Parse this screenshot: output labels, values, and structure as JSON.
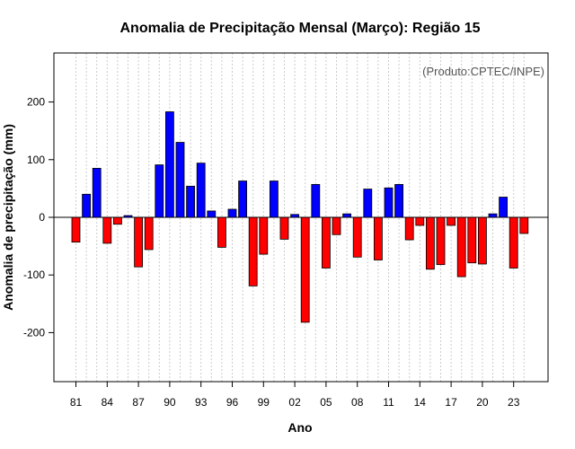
{
  "chart_data": {
    "type": "bar",
    "title": "Anomalia de Precipitação Mensal (Março): Região 15",
    "xlabel": "Ano",
    "ylabel": "Anomalia de precipitação (mm)",
    "annotation": "(Produto:CPTEC/INPE)",
    "ylim": [
      -285,
      285
    ],
    "y_ticks": [
      -200,
      -100,
      0,
      100,
      200
    ],
    "x_tick_labels": [
      "81",
      "84",
      "87",
      "90",
      "93",
      "96",
      "99",
      "02",
      "05",
      "08",
      "11",
      "14",
      "17",
      "20",
      "23"
    ],
    "categories": [
      "1981",
      "1982",
      "1983",
      "1984",
      "1985",
      "1986",
      "1987",
      "1988",
      "1989",
      "1990",
      "1991",
      "1992",
      "1993",
      "1994",
      "1995",
      "1996",
      "1997",
      "1998",
      "1999",
      "2000",
      "2001",
      "2002",
      "2003",
      "2004",
      "2005",
      "2006",
      "2007",
      "2008",
      "2009",
      "2010",
      "2011",
      "2012",
      "2013",
      "2014",
      "2015",
      "2016",
      "2017",
      "2018",
      "2019",
      "2020",
      "2021",
      "2022",
      "2023",
      "2024"
    ],
    "values": [
      -43,
      40,
      85,
      -45,
      -12,
      3,
      -86,
      -56,
      91,
      183,
      130,
      54,
      94,
      11,
      -52,
      14,
      63,
      -119,
      -64,
      63,
      -38,
      5,
      -182,
      57,
      -88,
      -30,
      6,
      -69,
      49,
      -74,
      51,
      57,
      -39,
      -14,
      -90,
      -82,
      -14,
      -103,
      -79,
      -81,
      6,
      35,
      -88,
      -28
    ],
    "colors": {
      "positive": "#0000ff",
      "negative": "#ff0000",
      "grid": "#cccccc"
    }
  }
}
